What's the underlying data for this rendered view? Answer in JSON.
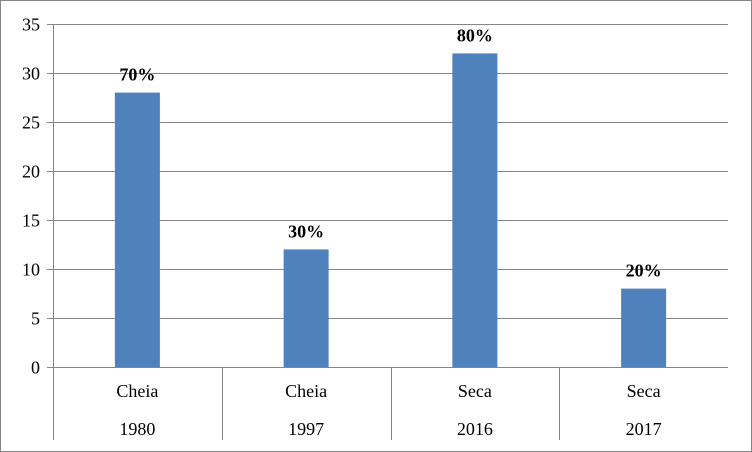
{
  "chart_data": {
    "type": "bar",
    "categories": [
      [
        "Cheia",
        "1980"
      ],
      [
        "Cheia",
        "1997"
      ],
      [
        "Seca",
        "2016"
      ],
      [
        "Seca",
        "2017"
      ]
    ],
    "values": [
      28,
      12,
      32,
      8
    ],
    "data_labels": [
      "70%",
      "30%",
      "80%",
      "20%"
    ],
    "title": "",
    "xlabel": "",
    "ylabel": "",
    "ylim": [
      0,
      35
    ],
    "yticks": [
      0,
      5,
      10,
      15,
      20,
      25,
      30,
      35
    ],
    "grid": true,
    "legend": "none",
    "colors": {
      "bar": "#4F81BD",
      "grid": "#868686",
      "axis": "#868686",
      "frame": "#868686"
    }
  }
}
